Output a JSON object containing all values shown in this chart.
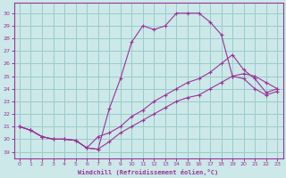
{
  "xlabel": "Windchill (Refroidissement éolien,°C)",
  "background_color": "#cce8e8",
  "grid_color": "#99cccc",
  "line_color": "#993399",
  "spine_color": "#993399",
  "xlim": [
    -0.5,
    23.5
  ],
  "ylim": [
    18.5,
    30.8
  ],
  "yticks": [
    19,
    20,
    21,
    22,
    23,
    24,
    25,
    26,
    27,
    28,
    29,
    30
  ],
  "xticks": [
    0,
    1,
    2,
    3,
    4,
    5,
    6,
    7,
    8,
    9,
    10,
    11,
    12,
    13,
    14,
    15,
    16,
    17,
    18,
    19,
    20,
    21,
    22,
    23
  ],
  "line1_x": [
    0,
    1,
    2,
    3,
    4,
    5,
    6,
    7,
    8,
    9,
    10,
    11,
    12,
    13,
    14,
    15,
    16,
    17,
    18,
    19,
    20,
    21,
    22,
    23
  ],
  "line1_y": [
    21.0,
    20.7,
    20.2,
    20.0,
    20.0,
    19.9,
    19.3,
    19.2,
    22.4,
    24.8,
    27.7,
    29.0,
    28.7,
    29.0,
    30.0,
    30.0,
    30.0,
    29.3,
    28.3,
    25.0,
    24.8,
    24.0,
    23.5,
    23.8
  ],
  "line2_x": [
    0,
    1,
    2,
    3,
    4,
    5,
    6,
    7,
    8,
    9,
    10,
    11,
    12,
    13,
    14,
    15,
    16,
    17,
    18,
    19,
    20,
    21,
    22,
    23
  ],
  "line2_y": [
    21.0,
    20.7,
    20.2,
    20.0,
    20.0,
    19.9,
    19.3,
    20.2,
    20.5,
    21.0,
    21.8,
    22.3,
    23.0,
    23.5,
    24.0,
    24.5,
    24.8,
    25.3,
    26.0,
    26.7,
    25.5,
    24.8,
    23.7,
    24.0
  ],
  "line3_x": [
    0,
    1,
    2,
    3,
    4,
    5,
    6,
    7,
    8,
    9,
    10,
    11,
    12,
    13,
    14,
    15,
    16,
    17,
    18,
    19,
    20,
    21,
    22,
    23
  ],
  "line3_y": [
    21.0,
    20.7,
    20.2,
    20.0,
    20.0,
    19.9,
    19.3,
    19.2,
    19.8,
    20.5,
    21.0,
    21.5,
    22.0,
    22.5,
    23.0,
    23.3,
    23.5,
    24.0,
    24.5,
    25.0,
    25.2,
    25.0,
    24.5,
    24.0
  ]
}
